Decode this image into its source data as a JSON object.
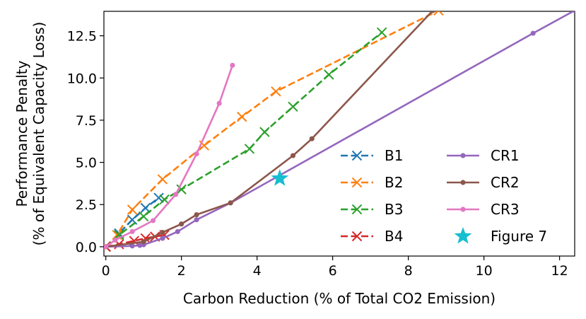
{
  "chart_data": {
    "type": "line",
    "xlabel": "Carbon Reduction (% of Total CO2 Emission)",
    "ylabel_line1": "Performance Penalty",
    "ylabel_line2": "(% of Equivalent Capacity Loss)",
    "xlim": [
      -0.05,
      12.4
    ],
    "ylim": [
      -0.55,
      13.95
    ],
    "xticks": [
      0,
      2,
      4,
      6,
      8,
      10,
      12
    ],
    "xtick_labels": [
      "0",
      "2",
      "4",
      "6",
      "8",
      "10",
      "12"
    ],
    "yticks": [
      0.0,
      2.5,
      5.0,
      7.5,
      10.0,
      12.5
    ],
    "ytick_labels": [
      "0.0",
      "2.5",
      "5.0",
      "7.5",
      "10.0",
      "12.5"
    ],
    "legend_position": "lower right",
    "series": [
      {
        "name": "B1",
        "color": "#1f77b4",
        "style": "dashed",
        "marker": "x",
        "x": [
          0,
          0.35,
          0.7,
          1.05,
          1.4
        ],
        "y": [
          0,
          0.8,
          1.6,
          2.3,
          2.9
        ]
      },
      {
        "name": "B2",
        "color": "#ff7f0e",
        "style": "dashed",
        "marker": "x",
        "x": [
          0,
          0.3,
          0.7,
          1.5,
          2.6,
          3.6,
          4.5,
          8.8
        ],
        "y": [
          0,
          0.7,
          2.2,
          4.0,
          6.0,
          7.7,
          9.2,
          14.0
        ]
      },
      {
        "name": "B3",
        "color": "#2ca02c",
        "style": "dashed",
        "marker": "x",
        "x": [
          0,
          0.35,
          1.0,
          1.55,
          2.0,
          3.8,
          4.2,
          4.95,
          5.9,
          7.3
        ],
        "y": [
          0,
          0.7,
          1.8,
          2.8,
          3.4,
          5.8,
          6.8,
          8.3,
          10.2,
          12.7
        ]
      },
      {
        "name": "B4",
        "color": "#d62728",
        "style": "dashed",
        "marker": "x",
        "x": [
          0,
          0.35,
          0.75,
          1.05,
          1.3,
          1.55
        ],
        "y": [
          0,
          0.15,
          0.35,
          0.5,
          0.6,
          0.7
        ]
      },
      {
        "name": "CR1",
        "color": "#9467bd",
        "style": "solid",
        "marker": "o",
        "x": [
          0,
          0.7,
          0.9,
          1.0,
          1.5,
          1.9,
          2.4,
          3.3,
          11.3,
          12.4
        ],
        "y": [
          0,
          0.05,
          0.08,
          0.12,
          0.5,
          0.9,
          1.6,
          2.6,
          12.65,
          14.0
        ]
      },
      {
        "name": "CR2",
        "color": "#8c564b",
        "style": "solid",
        "marker": "o",
        "x": [
          0,
          1.0,
          1.5,
          2.0,
          2.4,
          3.3,
          4.95,
          5.45,
          8.65
        ],
        "y": [
          0,
          0.3,
          0.85,
          1.35,
          1.9,
          2.6,
          5.4,
          6.4,
          14.0
        ]
      },
      {
        "name": "CR3",
        "color": "#e377c2",
        "style": "solid",
        "marker": "o",
        "x": [
          0,
          0.25,
          0.7,
          1.25,
          1.85,
          2.4,
          3.0,
          3.35
        ],
        "y": [
          0,
          0.4,
          0.9,
          1.55,
          3.1,
          5.5,
          8.5,
          10.75
        ]
      },
      {
        "name": "Figure 7",
        "color": "#17becf",
        "style": "none",
        "marker": "star",
        "x": [
          4.6
        ],
        "y": [
          4.05
        ]
      }
    ]
  }
}
